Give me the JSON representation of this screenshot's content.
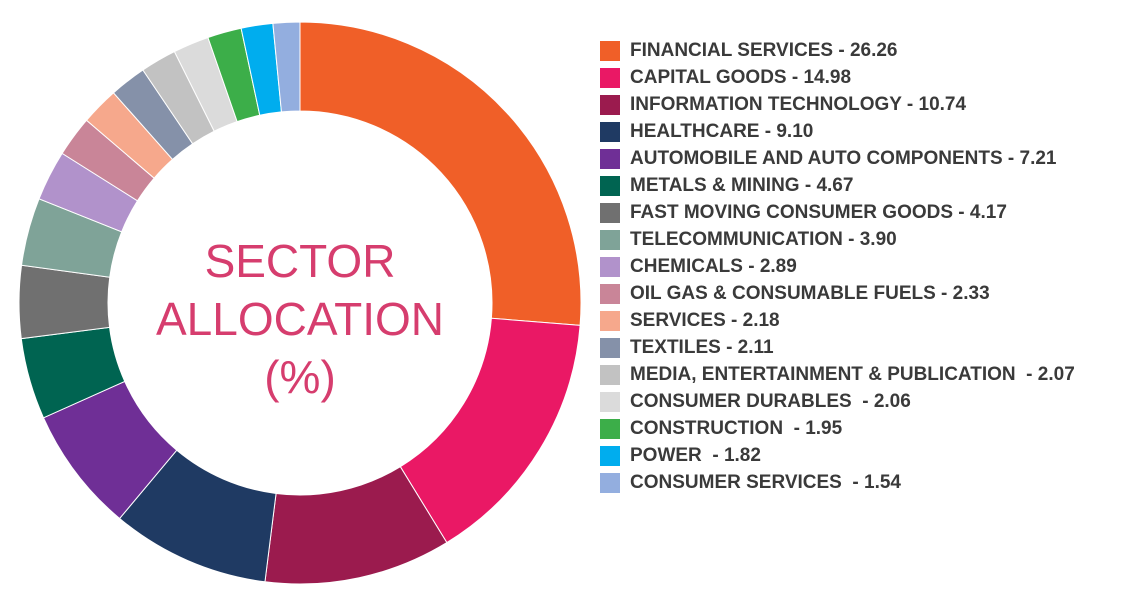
{
  "chart_data": {
    "type": "pie",
    "style": "donut",
    "title": "SECTOR ALLOCATION (%)",
    "title_lines": [
      "SECTOR",
      "ALLOCATION",
      "(%)"
    ],
    "legend_position": "right",
    "categories": [
      "FINANCIAL SERVICES",
      "CAPITAL GOODS",
      "INFORMATION TECHNOLOGY",
      "HEALTHCARE",
      "AUTOMOBILE AND AUTO COMPONENTS",
      "METALS & MINING",
      "FAST MOVING CONSUMER GOODS",
      "TELECOMMUNICATION",
      "CHEMICALS",
      "OIL GAS & CONSUMABLE FUELS",
      "SERVICES",
      "TEXTILES",
      "MEDIA, ENTERTAINMENT & PUBLICATION",
      "CONSUMER DURABLES",
      "CONSTRUCTION",
      "POWER",
      "CONSUMER SERVICES"
    ],
    "values": [
      26.26,
      14.98,
      10.74,
      9.1,
      7.21,
      4.67,
      4.17,
      3.9,
      2.89,
      2.33,
      2.18,
      2.11,
      2.07,
      2.06,
      1.95,
      1.82,
      1.54
    ],
    "legend_labels": [
      "FINANCIAL SERVICES - 26.26",
      "CAPITAL GOODS - 14.98",
      "INFORMATION TECHNOLOGY - 10.74",
      "HEALTHCARE - 9.10",
      "AUTOMOBILE AND AUTO COMPONENTS - 7.21",
      "METALS & MINING - 4.67",
      "FAST MOVING CONSUMER GOODS - 4.17",
      "TELECOMMUNICATION - 3.90",
      "CHEMICALS - 2.89",
      "OIL GAS & CONSUMABLE FUELS - 2.33",
      "SERVICES - 2.18",
      "TEXTILES - 2.11",
      "MEDIA, ENTERTAINMENT & PUBLICATION  - 2.07",
      "CONSUMER DURABLES  - 2.06",
      "CONSTRUCTION  - 1.95",
      "POWER  - 1.82",
      "CONSUMER SERVICES  - 1.54"
    ],
    "colors": [
      "#f05f28",
      "#ea1865",
      "#9b1b4e",
      "#1f3a63",
      "#6f2f96",
      "#006451",
      "#707070",
      "#7fa398",
      "#b192cb",
      "#c98598",
      "#f6a88c",
      "#8591a9",
      "#c2c2c2",
      "#dbdbdb",
      "#3cae49",
      "#00adee",
      "#93aedf"
    ],
    "title_color": "#d63d6e"
  }
}
